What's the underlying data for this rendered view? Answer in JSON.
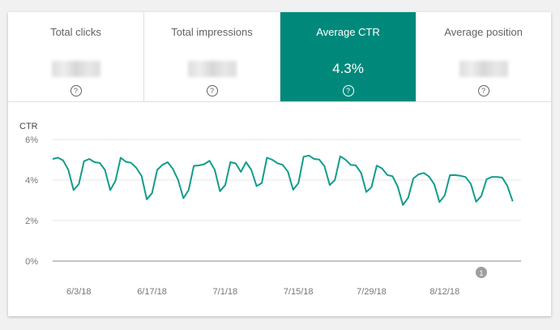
{
  "metrics": [
    {
      "label": "Total clicks",
      "value": null,
      "active": false
    },
    {
      "label": "Total impressions",
      "value": null,
      "active": false
    },
    {
      "label": "Average CTR",
      "value": "4.3%",
      "active": true
    },
    {
      "label": "Average position",
      "value": null,
      "active": false
    }
  ],
  "help_glyph": "?",
  "colors": {
    "accent": "#00897b",
    "line": "#129c8a"
  },
  "chart_data": {
    "type": "line",
    "ylabel": "CTR",
    "ylim": [
      0,
      6
    ],
    "yticks": [
      "0%",
      "2%",
      "4%",
      "6%"
    ],
    "ytick_values": [
      0,
      2,
      4,
      6
    ],
    "x_start": "5/29/18",
    "x_end": "8/25/18",
    "xticks": [
      {
        "label": "6/3/18",
        "index": 5
      },
      {
        "label": "6/17/18",
        "index": 19
      },
      {
        "label": "7/1/18",
        "index": 33
      },
      {
        "label": "7/15/18",
        "index": 47
      },
      {
        "label": "7/29/18",
        "index": 61
      },
      {
        "label": "8/12/18",
        "index": 75
      }
    ],
    "annotations": [
      {
        "label": "1",
        "index": 82
      }
    ],
    "values": [
      5.04,
      5.1,
      4.97,
      4.5,
      3.5,
      3.8,
      4.93,
      5.04,
      4.88,
      4.84,
      4.5,
      3.5,
      3.95,
      5.1,
      4.9,
      4.85,
      4.6,
      4.2,
      3.05,
      3.35,
      4.5,
      4.75,
      4.88,
      4.55,
      4.0,
      3.1,
      3.5,
      4.7,
      4.72,
      4.78,
      4.95,
      4.5,
      3.45,
      3.75,
      4.88,
      4.82,
      4.4,
      4.88,
      4.5,
      3.7,
      3.85,
      5.1,
      5.0,
      4.83,
      4.75,
      4.41,
      3.52,
      3.84,
      5.15,
      5.21,
      5.04,
      5.01,
      4.68,
      3.75,
      4.01,
      5.17,
      5.01,
      4.75,
      4.72,
      4.35,
      3.41,
      3.65,
      4.71,
      4.57,
      4.25,
      4.19,
      3.68,
      2.77,
      3.12,
      4.08,
      4.28,
      4.35,
      4.17,
      3.79,
      2.91,
      3.25,
      4.24,
      4.24,
      4.21,
      4.15,
      3.81,
      2.93,
      3.21,
      4.04,
      4.15,
      4.15,
      4.12,
      3.71,
      2.95
    ]
  }
}
